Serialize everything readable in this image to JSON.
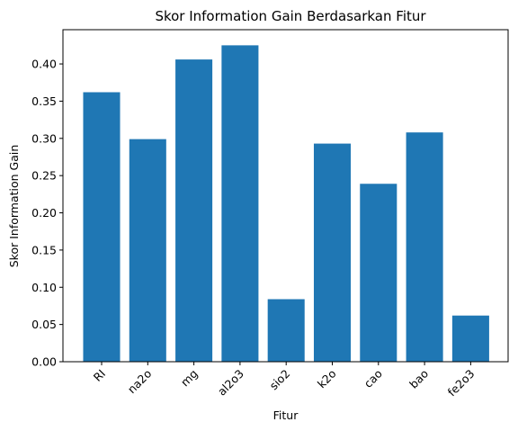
{
  "chart_data": {
    "type": "bar",
    "title": "Skor Information Gain Berdasarkan Fitur",
    "xlabel": "Fitur",
    "ylabel": "Skor Information Gain",
    "categories": [
      "RI",
      "na2o",
      "mg",
      "al2o3",
      "sio2",
      "k2o",
      "cao",
      "bao",
      "fe2o3"
    ],
    "values": [
      0.362,
      0.299,
      0.406,
      0.425,
      0.084,
      0.293,
      0.239,
      0.308,
      0.062
    ],
    "ylim": [
      0,
      0.446
    ],
    "yticks": [
      0.0,
      0.05,
      0.1,
      0.15,
      0.2,
      0.25,
      0.3,
      0.35,
      0.4
    ],
    "ytick_labels": [
      "0.00",
      "0.05",
      "0.10",
      "0.15",
      "0.20",
      "0.25",
      "0.30",
      "0.35",
      "0.40"
    ],
    "bar_color": "#1f77b4",
    "grid": false,
    "xtick_rotation_deg": 45
  }
}
